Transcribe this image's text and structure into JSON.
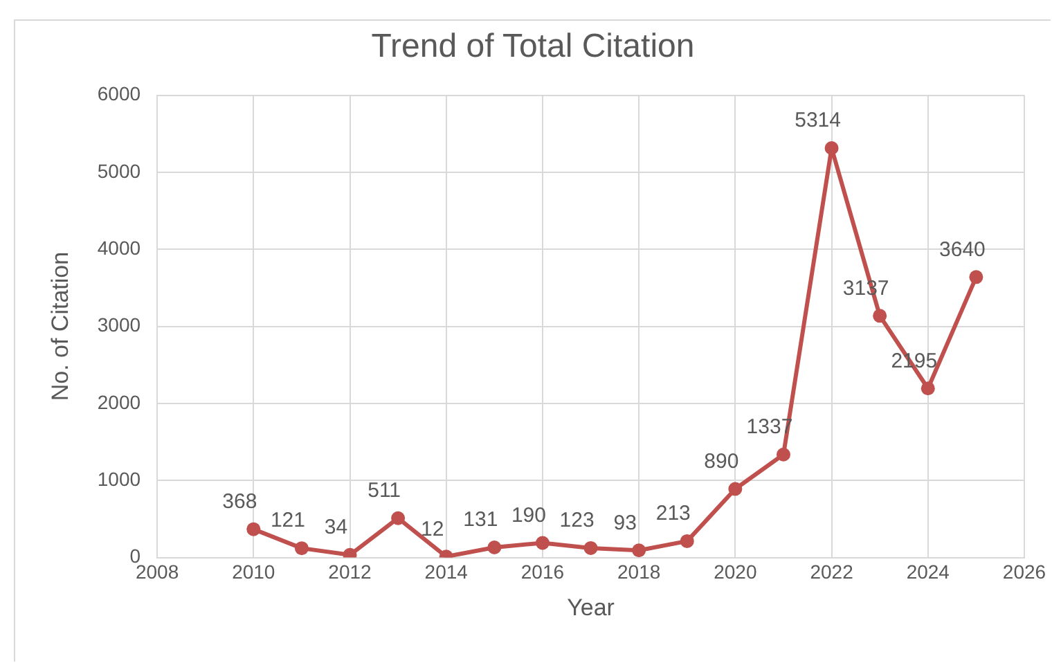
{
  "chart_data": {
    "type": "line",
    "title": "Trend of Total Citation",
    "xlabel": "Year",
    "ylabel": "No. of Citation",
    "x": [
      2010,
      2011,
      2012,
      2013,
      2014,
      2015,
      2016,
      2017,
      2018,
      2019,
      2020,
      2021,
      2022,
      2023,
      2024,
      2025
    ],
    "series": [
      {
        "color": "#c0504d",
        "values": [
          368,
          121,
          34,
          511,
          12,
          131,
          190,
          123,
          93,
          213,
          890,
          1337,
          5314,
          3137,
          2195,
          3640
        ]
      }
    ],
    "xlim": [
      2008,
      2026
    ],
    "xticks": [
      2008,
      2010,
      2012,
      2014,
      2016,
      2018,
      2020,
      2022,
      2024,
      2026
    ],
    "ylim": [
      0,
      6000
    ],
    "yticks": [
      0,
      1000,
      2000,
      3000,
      4000,
      5000,
      6000
    ],
    "grid": true,
    "legend": false,
    "marker": "circle",
    "line_style": "solid",
    "data_labels": true
  }
}
